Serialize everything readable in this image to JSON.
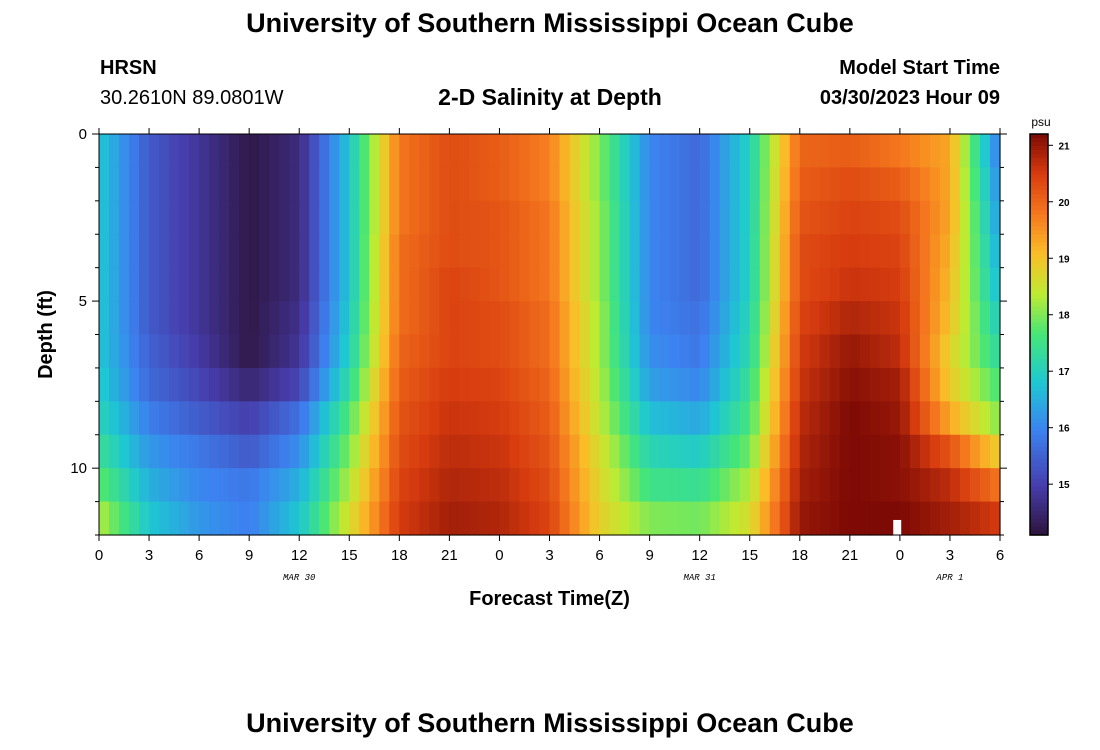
{
  "header": {
    "title": "University of Southern Mississippi Ocean Cube",
    "station": "HRSN",
    "coordinates": "30.2610N  89.0801W",
    "subtitle": "2-D Salinity at Depth",
    "model_start_label": "Model Start Time",
    "model_start_value": "03/30/2023 Hour 09",
    "footer_title": "University of Southern Mississippi Ocean Cube"
  },
  "chart_data": {
    "type": "heatmap",
    "title": "2-D Salinity at Depth",
    "xlabel": "Forecast Time(Z)",
    "ylabel": "Depth (ft)",
    "x_range_hours": [
      0,
      54
    ],
    "y_range_ft": [
      0,
      12
    ],
    "x_tick_hours": [
      0,
      3,
      6,
      9,
      12,
      15,
      18,
      21,
      24,
      27,
      30,
      33,
      36,
      39,
      42,
      45,
      48,
      51,
      54
    ],
    "x_tick_labels": [
      "0",
      "3",
      "6",
      "9",
      "12",
      "15",
      "18",
      "21",
      "0",
      "3",
      "6",
      "9",
      "12",
      "15",
      "18",
      "21",
      "0",
      "3",
      "6"
    ],
    "y_ticks": [
      0,
      5,
      10
    ],
    "y_tick_labels": [
      "0",
      "5",
      "10"
    ],
    "dates": [
      {
        "label": "MAR 30",
        "hour": 12
      },
      {
        "label": "MAR 31",
        "hour": 36
      },
      {
        "label": "APR 1",
        "hour": 51
      }
    ],
    "colorbar": {
      "unit": "psu",
      "range": [
        14.1,
        21.2
      ],
      "ticks": [
        15,
        16,
        17,
        18,
        19,
        20,
        21
      ],
      "tick_labels": [
        "15",
        "16",
        "17",
        "18",
        "19",
        "20",
        "21"
      ]
    },
    "depth_levels_ft": [
      0.5,
      1.5,
      2.5,
      3.5,
      4.5,
      5.5,
      6.5,
      7.5,
      8.5,
      9.5,
      10.5,
      11.5
    ],
    "time_hours": [
      0,
      3,
      6,
      9,
      12,
      15,
      18,
      21,
      24,
      27,
      30,
      33,
      36,
      39,
      42,
      45,
      48,
      51,
      54
    ],
    "salinity_psu": [
      [
        16.8,
        15.4,
        14.8,
        14.2,
        14.6,
        16.8,
        19.8,
        20.3,
        20.1,
        19.7,
        18.0,
        16.0,
        15.6,
        17.0,
        20.0,
        20.1,
        19.8,
        19.3,
        15.8
      ],
      [
        16.8,
        15.4,
        14.8,
        14.2,
        14.6,
        16.8,
        19.8,
        20.3,
        20.1,
        19.7,
        18.0,
        16.0,
        15.6,
        17.0,
        20.1,
        20.3,
        20.1,
        19.3,
        16.0
      ],
      [
        16.8,
        15.4,
        14.8,
        14.2,
        14.6,
        16.8,
        19.8,
        20.3,
        20.2,
        19.8,
        18.1,
        16.0,
        15.6,
        17.0,
        20.2,
        20.4,
        20.3,
        19.3,
        16.2
      ],
      [
        16.8,
        15.4,
        14.8,
        14.2,
        14.6,
        16.8,
        19.9,
        20.3,
        20.2,
        19.8,
        18.1,
        16.0,
        15.6,
        17.0,
        20.3,
        20.5,
        20.4,
        19.2,
        16.4
      ],
      [
        16.8,
        15.4,
        14.8,
        14.2,
        14.6,
        16.8,
        19.9,
        20.4,
        20.2,
        19.8,
        18.1,
        16.0,
        15.6,
        17.0,
        20.3,
        20.6,
        20.5,
        19.1,
        16.6
      ],
      [
        16.8,
        15.4,
        14.8,
        14.2,
        14.7,
        16.9,
        19.9,
        20.4,
        20.3,
        19.9,
        18.2,
        16.0,
        15.7,
        17.1,
        20.4,
        20.8,
        20.6,
        19.0,
        16.9
      ],
      [
        16.8,
        15.5,
        14.9,
        14.2,
        14.8,
        17.0,
        20.0,
        20.4,
        20.3,
        19.9,
        18.2,
        16.1,
        15.8,
        17.2,
        20.5,
        21.0,
        20.7,
        18.8,
        17.2
      ],
      [
        16.9,
        15.6,
        15.1,
        14.5,
        15.1,
        17.3,
        20.1,
        20.5,
        20.4,
        20.0,
        18.3,
        16.3,
        16.0,
        17.4,
        20.6,
        21.1,
        20.9,
        18.9,
        17.6
      ],
      [
        17.1,
        15.9,
        15.4,
        15.0,
        15.7,
        17.7,
        20.2,
        20.6,
        20.5,
        20.1,
        18.4,
        16.7,
        16.4,
        17.6,
        20.7,
        21.2,
        21.0,
        19.3,
        18.0
      ],
      [
        17.4,
        16.2,
        15.8,
        15.4,
        16.1,
        18.0,
        20.3,
        20.7,
        20.6,
        20.2,
        18.6,
        17.1,
        16.9,
        17.9,
        20.8,
        21.2,
        21.1,
        20.2,
        18.8
      ],
      [
        17.8,
        16.5,
        16.0,
        15.8,
        16.5,
        18.3,
        20.4,
        20.8,
        20.7,
        20.3,
        18.7,
        17.5,
        17.4,
        18.3,
        20.9,
        21.2,
        21.1,
        20.7,
        19.8
      ],
      [
        18.3,
        16.8,
        16.2,
        15.9,
        16.8,
        18.6,
        20.5,
        20.9,
        20.8,
        20.4,
        18.8,
        18.0,
        17.9,
        18.6,
        21.0,
        21.2,
        21.2,
        20.9,
        20.5
      ]
    ]
  }
}
